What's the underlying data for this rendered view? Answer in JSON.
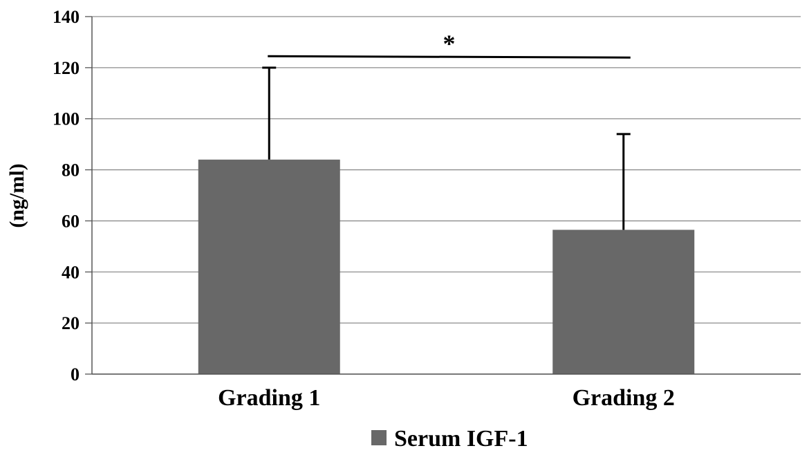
{
  "chart_data": {
    "type": "bar",
    "title": "",
    "xlabel": "",
    "ylabel": "(ng/ml)",
    "categories": [
      "Grading 1",
      "Grading 2"
    ],
    "series": [
      {
        "name": "Serum IGF-1",
        "values": [
          84,
          56.5
        ],
        "error_upper": [
          120,
          94
        ],
        "color": "#686868"
      }
    ],
    "ylim": [
      0,
      140
    ],
    "yticks": [
      0,
      20,
      40,
      60,
      80,
      100,
      120,
      140
    ],
    "grid": true,
    "legend_position": "bottom",
    "annotations": [
      {
        "text": "*",
        "type": "significance",
        "between": [
          "Grading 1",
          "Grading 2"
        ],
        "y": 124.5
      }
    ]
  }
}
